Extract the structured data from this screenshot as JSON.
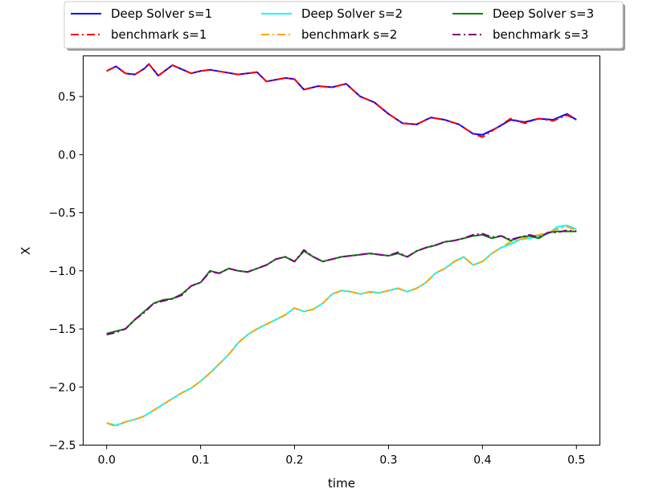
{
  "chart_data": {
    "type": "line",
    "title": "",
    "xlabel": "time",
    "ylabel": "X",
    "xlim": [
      -0.025,
      0.525
    ],
    "ylim": [
      -2.5,
      0.85
    ],
    "xticks": [
      0.0,
      0.1,
      0.2,
      0.3,
      0.4,
      0.5
    ],
    "xtick_labels": [
      "0.0",
      "0.1",
      "0.2",
      "0.3",
      "0.4",
      "0.5"
    ],
    "yticks": [
      -2.5,
      -2.0,
      -1.5,
      -1.0,
      -0.5,
      0.0,
      0.5
    ],
    "ytick_labels": [
      "−2.5",
      "−2.0",
      "−1.5",
      "−1.0",
      "−0.5",
      "0.0",
      "0.5"
    ],
    "grid": false,
    "legend_position": "top-center, outside plot, 3 columns",
    "series": [
      {
        "name": "Deep Solver s=1",
        "color": "#0000ff",
        "style": "solid",
        "x": [
          0.0,
          0.01,
          0.02,
          0.03,
          0.04,
          0.045,
          0.055,
          0.07,
          0.09,
          0.1,
          0.11,
          0.125,
          0.14,
          0.16,
          0.17,
          0.19,
          0.2,
          0.21,
          0.225,
          0.24,
          0.255,
          0.27,
          0.285,
          0.3,
          0.315,
          0.33,
          0.345,
          0.36,
          0.375,
          0.39,
          0.4,
          0.415,
          0.43,
          0.445,
          0.46,
          0.475,
          0.49,
          0.5
        ],
        "values": [
          0.72,
          0.76,
          0.7,
          0.69,
          0.74,
          0.78,
          0.68,
          0.77,
          0.7,
          0.72,
          0.73,
          0.71,
          0.69,
          0.71,
          0.63,
          0.66,
          0.65,
          0.56,
          0.59,
          0.58,
          0.61,
          0.5,
          0.45,
          0.35,
          0.27,
          0.26,
          0.32,
          0.3,
          0.26,
          0.18,
          0.17,
          0.23,
          0.3,
          0.28,
          0.31,
          0.3,
          0.35,
          0.3
        ]
      },
      {
        "name": "benchmark s=1",
        "color": "#ff0000",
        "style": "dashdot",
        "x": [
          0.0,
          0.01,
          0.02,
          0.03,
          0.04,
          0.045,
          0.055,
          0.07,
          0.09,
          0.1,
          0.11,
          0.125,
          0.14,
          0.16,
          0.17,
          0.19,
          0.2,
          0.21,
          0.225,
          0.24,
          0.255,
          0.27,
          0.285,
          0.3,
          0.315,
          0.33,
          0.345,
          0.36,
          0.375,
          0.39,
          0.4,
          0.415,
          0.43,
          0.445,
          0.46,
          0.475,
          0.49,
          0.5
        ],
        "values": [
          0.72,
          0.76,
          0.7,
          0.69,
          0.74,
          0.78,
          0.68,
          0.77,
          0.7,
          0.72,
          0.73,
          0.71,
          0.69,
          0.71,
          0.63,
          0.66,
          0.65,
          0.56,
          0.59,
          0.58,
          0.61,
          0.5,
          0.45,
          0.35,
          0.27,
          0.26,
          0.32,
          0.3,
          0.26,
          0.18,
          0.15,
          0.23,
          0.31,
          0.27,
          0.31,
          0.29,
          0.34,
          0.3
        ]
      },
      {
        "name": "Deep Solver s=2",
        "color": "#00ffff",
        "style": "solid",
        "x": [
          0.0,
          0.01,
          0.02,
          0.03,
          0.04,
          0.05,
          0.06,
          0.07,
          0.08,
          0.09,
          0.1,
          0.11,
          0.12,
          0.13,
          0.14,
          0.15,
          0.16,
          0.17,
          0.18,
          0.19,
          0.2,
          0.21,
          0.22,
          0.23,
          0.24,
          0.25,
          0.26,
          0.27,
          0.28,
          0.29,
          0.3,
          0.31,
          0.32,
          0.33,
          0.34,
          0.35,
          0.36,
          0.37,
          0.38,
          0.39,
          0.4,
          0.41,
          0.42,
          0.43,
          0.44,
          0.45,
          0.46,
          0.47,
          0.48,
          0.49,
          0.5
        ],
        "values": [
          -2.31,
          -2.33,
          -2.3,
          -2.28,
          -2.25,
          -2.2,
          -2.15,
          -2.1,
          -2.05,
          -2.01,
          -1.95,
          -1.88,
          -1.8,
          -1.72,
          -1.62,
          -1.55,
          -1.5,
          -1.46,
          -1.42,
          -1.38,
          -1.32,
          -1.35,
          -1.33,
          -1.28,
          -1.2,
          -1.17,
          -1.18,
          -1.2,
          -1.18,
          -1.19,
          -1.17,
          -1.15,
          -1.18,
          -1.15,
          -1.1,
          -1.02,
          -0.98,
          -0.92,
          -0.88,
          -0.95,
          -0.92,
          -0.85,
          -0.8,
          -0.77,
          -0.73,
          -0.72,
          -0.7,
          -0.68,
          -0.62,
          -0.61,
          -0.64
        ]
      },
      {
        "name": "benchmark s=2",
        "color": "#ffa500",
        "style": "dashdot",
        "x": [
          0.0,
          0.01,
          0.02,
          0.03,
          0.04,
          0.05,
          0.06,
          0.07,
          0.08,
          0.09,
          0.1,
          0.11,
          0.12,
          0.13,
          0.14,
          0.15,
          0.16,
          0.17,
          0.18,
          0.19,
          0.2,
          0.21,
          0.22,
          0.23,
          0.24,
          0.25,
          0.26,
          0.27,
          0.28,
          0.29,
          0.3,
          0.31,
          0.32,
          0.33,
          0.34,
          0.35,
          0.36,
          0.37,
          0.38,
          0.39,
          0.4,
          0.41,
          0.42,
          0.43,
          0.44,
          0.45,
          0.46,
          0.47,
          0.48,
          0.49,
          0.5
        ],
        "values": [
          -2.31,
          -2.34,
          -2.3,
          -2.28,
          -2.25,
          -2.2,
          -2.15,
          -2.1,
          -2.05,
          -2.01,
          -1.95,
          -1.88,
          -1.8,
          -1.72,
          -1.62,
          -1.55,
          -1.5,
          -1.46,
          -1.42,
          -1.38,
          -1.32,
          -1.35,
          -1.33,
          -1.28,
          -1.2,
          -1.17,
          -1.18,
          -1.2,
          -1.18,
          -1.19,
          -1.17,
          -1.15,
          -1.18,
          -1.15,
          -1.1,
          -1.02,
          -0.98,
          -0.92,
          -0.88,
          -0.95,
          -0.92,
          -0.85,
          -0.8,
          -0.75,
          -0.73,
          -0.71,
          -0.69,
          -0.67,
          -0.64,
          -0.62,
          -0.65
        ]
      },
      {
        "name": "Deep Solver s=3",
        "color": "#008000",
        "style": "solid",
        "x": [
          0.0,
          0.01,
          0.02,
          0.03,
          0.04,
          0.05,
          0.06,
          0.07,
          0.08,
          0.09,
          0.1,
          0.11,
          0.12,
          0.13,
          0.14,
          0.15,
          0.16,
          0.17,
          0.18,
          0.19,
          0.2,
          0.21,
          0.22,
          0.23,
          0.24,
          0.25,
          0.26,
          0.27,
          0.28,
          0.29,
          0.3,
          0.31,
          0.32,
          0.33,
          0.34,
          0.35,
          0.36,
          0.37,
          0.38,
          0.39,
          0.4,
          0.41,
          0.42,
          0.43,
          0.44,
          0.45,
          0.46,
          0.47,
          0.48,
          0.49,
          0.5
        ],
        "values": [
          -1.54,
          -1.52,
          -1.5,
          -1.42,
          -1.35,
          -1.28,
          -1.25,
          -1.24,
          -1.2,
          -1.13,
          -1.1,
          -1.0,
          -1.02,
          -0.98,
          -1.0,
          -1.01,
          -0.98,
          -0.95,
          -0.9,
          -0.88,
          -0.92,
          -0.83,
          -0.88,
          -0.92,
          -0.9,
          -0.88,
          -0.87,
          -0.86,
          -0.85,
          -0.86,
          -0.87,
          -0.85,
          -0.88,
          -0.83,
          -0.8,
          -0.78,
          -0.75,
          -0.74,
          -0.72,
          -0.7,
          -0.69,
          -0.72,
          -0.7,
          -0.74,
          -0.71,
          -0.7,
          -0.72,
          -0.67,
          -0.66,
          -0.66,
          -0.66
        ]
      },
      {
        "name": "benchmark s=3",
        "color": "#800080",
        "style": "dashdot",
        "x": [
          0.0,
          0.01,
          0.02,
          0.03,
          0.04,
          0.05,
          0.06,
          0.07,
          0.08,
          0.09,
          0.1,
          0.11,
          0.12,
          0.13,
          0.14,
          0.15,
          0.16,
          0.17,
          0.18,
          0.19,
          0.2,
          0.21,
          0.22,
          0.23,
          0.24,
          0.25,
          0.26,
          0.27,
          0.28,
          0.29,
          0.3,
          0.31,
          0.32,
          0.33,
          0.34,
          0.35,
          0.36,
          0.37,
          0.38,
          0.39,
          0.4,
          0.41,
          0.42,
          0.43,
          0.44,
          0.45,
          0.46,
          0.47,
          0.48,
          0.49,
          0.5
        ],
        "values": [
          -1.55,
          -1.53,
          -1.5,
          -1.42,
          -1.36,
          -1.28,
          -1.26,
          -1.24,
          -1.21,
          -1.13,
          -1.1,
          -1.01,
          -1.02,
          -0.98,
          -1.0,
          -1.01,
          -0.98,
          -0.95,
          -0.9,
          -0.88,
          -0.92,
          -0.82,
          -0.88,
          -0.92,
          -0.9,
          -0.88,
          -0.87,
          -0.86,
          -0.85,
          -0.86,
          -0.87,
          -0.84,
          -0.88,
          -0.83,
          -0.8,
          -0.78,
          -0.75,
          -0.74,
          -0.72,
          -0.69,
          -0.68,
          -0.71,
          -0.7,
          -0.73,
          -0.71,
          -0.69,
          -0.71,
          -0.67,
          -0.67,
          -0.65,
          -0.66
        ]
      }
    ]
  }
}
